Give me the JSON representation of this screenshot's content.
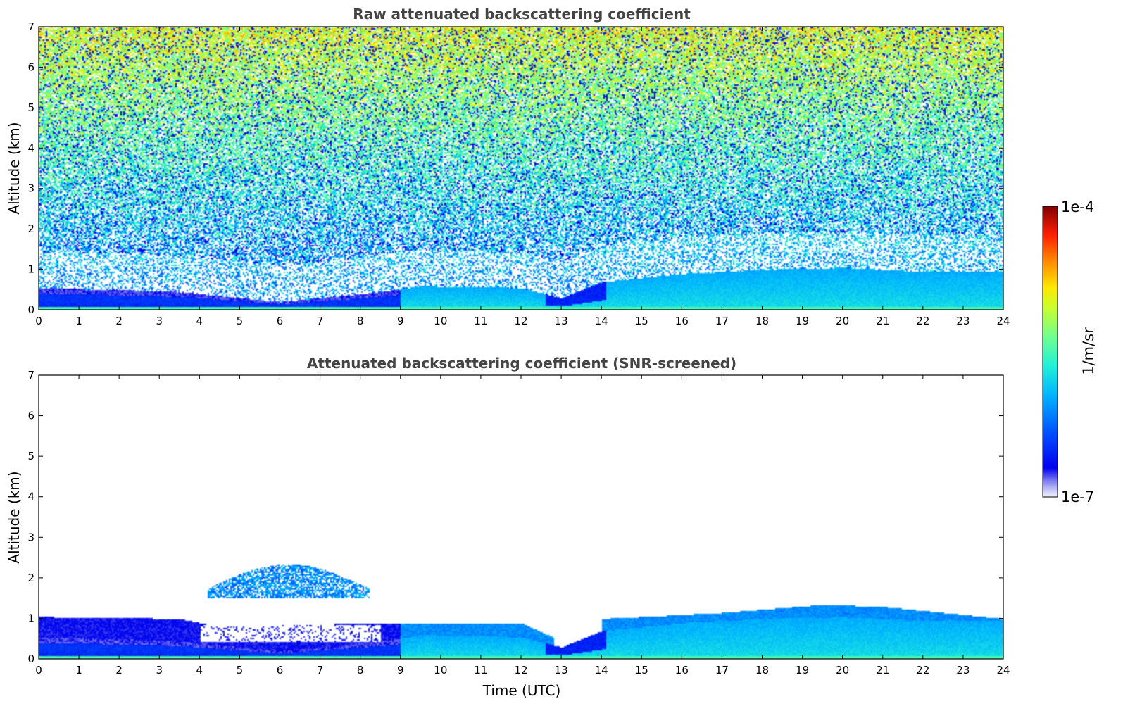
{
  "chart_data": [
    {
      "type": "heatmap",
      "title": "Raw attenuated backscattering coefficient",
      "xlabel": "",
      "ylabel": "Altitude (km)",
      "xlim": [
        0,
        24
      ],
      "ylim": [
        0,
        7
      ],
      "x_ticks": [
        "0",
        "1",
        "2",
        "3",
        "4",
        "5",
        "6",
        "7",
        "8",
        "9",
        "10",
        "11",
        "12",
        "13",
        "14",
        "15",
        "16",
        "17",
        "18",
        "19",
        "20",
        "21",
        "22",
        "23",
        "24"
      ],
      "y_ticks": [
        "0",
        "1",
        "2",
        "3",
        "4",
        "5",
        "6",
        "7"
      ],
      "field": {
        "description_units": "log10 of backscatter relative to colorbar range",
        "boundary_layer_top_km": [
          [
            0,
            0.55
          ],
          [
            2,
            0.5
          ],
          [
            3.5,
            0.45
          ],
          [
            4.5,
            0.35
          ],
          [
            6,
            0.2
          ],
          [
            8.5,
            0.45
          ],
          [
            9.5,
            0.6
          ],
          [
            12,
            0.55
          ],
          [
            13,
            0.3
          ],
          [
            14,
            0.7
          ],
          [
            16,
            0.9
          ],
          [
            18,
            1.0
          ],
          [
            20,
            1.05
          ],
          [
            22,
            0.95
          ],
          [
            24,
            0.95
          ]
        ],
        "noise_increases_with_altitude": true
      }
    },
    {
      "type": "heatmap",
      "title": "Attenuated backscattering coefficient (SNR-screened)",
      "xlabel": "Time (UTC)",
      "ylabel": "Altitude (km)",
      "xlim": [
        0,
        24
      ],
      "ylim": [
        0,
        7
      ],
      "x_ticks": [
        "0",
        "1",
        "2",
        "3",
        "4",
        "5",
        "6",
        "7",
        "8",
        "9",
        "10",
        "11",
        "12",
        "13",
        "14",
        "15",
        "16",
        "17",
        "18",
        "19",
        "20",
        "21",
        "22",
        "23",
        "24"
      ],
      "y_ticks": [
        "0",
        "1",
        "2",
        "3",
        "4",
        "5",
        "6",
        "7"
      ],
      "features": {
        "cloud_layer_km": {
          "time_range": [
            4.2,
            8.2
          ],
          "altitude_range": [
            1.5,
            2.6
          ]
        },
        "residual_layer_top_km": [
          [
            0,
            1.05
          ],
          [
            3.5,
            1.0
          ],
          [
            4.5,
            0.8
          ],
          [
            8.5,
            0.9
          ],
          [
            12,
            0.9
          ],
          [
            13,
            0.45
          ],
          [
            14,
            1.0
          ],
          [
            17,
            1.15
          ],
          [
            19.5,
            1.35
          ],
          [
            21,
            1.3
          ],
          [
            22.5,
            1.15
          ],
          [
            24,
            1.0
          ]
        ]
      }
    }
  ],
  "colorbar": {
    "label": "1/m/sr",
    "min_label": "1e-7",
    "max_label": "1e-4",
    "colormap": "jet"
  }
}
